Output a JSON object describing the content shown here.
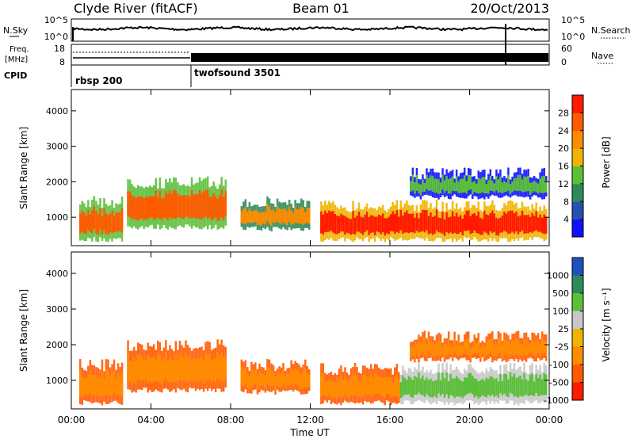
{
  "header": {
    "station": "Clyde River (fitACF)",
    "beam": "Beam 01",
    "date": "20/Oct/2013"
  },
  "top_panels": {
    "nsky_label": "N.Sky",
    "nsearch_label": "N.Search",
    "noise_left_ticks": [
      "10^5",
      "10^0"
    ],
    "noise_right_ticks": [
      "10^5",
      "10^0"
    ],
    "freq_label": "Freq.",
    "freq_unit": "[MHz]",
    "freq_ticks": [
      "18",
      "8"
    ],
    "nave_label": "Nave",
    "nave_ticks": [
      "60",
      "0"
    ],
    "cpid_label": "CPID",
    "cpid_segments": [
      {
        "name": "rbsp 200",
        "start_hour": 0
      },
      {
        "name": "twofsound 3501",
        "start_hour": 6
      }
    ]
  },
  "x_axis": {
    "label": "Time UT",
    "ticks": [
      "00:00",
      "04:00",
      "08:00",
      "12:00",
      "16:00",
      "20:00",
      "00:00"
    ],
    "range_hours": [
      0,
      24
    ]
  },
  "chart_data": [
    {
      "type": "heatmap",
      "quantity": "power",
      "ylabel": "Slant Range [km]",
      "y_ticks": [
        "1000",
        "2000",
        "3000",
        "4000"
      ],
      "ylim": [
        200,
        4600
      ],
      "colorbar": {
        "label": "Power [dB]",
        "ticks": [
          "4",
          "8",
          "12",
          "16",
          "20",
          "24",
          "28"
        ],
        "range": [
          0,
          32
        ],
        "colors": [
          "#1010ff",
          "#2850b0",
          "#2e8a5a",
          "#5cbf3a",
          "#f0b400",
          "#ff8c00",
          "#ff5a00",
          "#ff1a00"
        ]
      },
      "echo_regions": [
        {
          "t0": 0.4,
          "t1": 2.6,
          "r0": 300,
          "r1": 1600,
          "level": 24
        },
        {
          "t0": 2.8,
          "t1": 7.8,
          "r0": 650,
          "r1": 2150,
          "level": 26
        },
        {
          "t0": 8.5,
          "t1": 12.0,
          "r0": 600,
          "r1": 1600,
          "level": 20
        },
        {
          "t0": 12.5,
          "t1": 23.9,
          "r0": 300,
          "r1": 1500,
          "level": 28
        },
        {
          "t0": 17.0,
          "t1": 23.9,
          "r0": 1500,
          "r1": 2400,
          "level": 14
        }
      ]
    },
    {
      "type": "heatmap",
      "quantity": "velocity",
      "ylabel": "Slant Range [km]",
      "y_ticks": [
        "1000",
        "2000",
        "3000",
        "4000"
      ],
      "ylim": [
        200,
        4600
      ],
      "colorbar": {
        "label": "Velocity [m s⁻¹]",
        "ticks": [
          "1000",
          "500",
          "100",
          "25",
          "-25",
          "-100",
          "-500",
          "-1000"
        ],
        "colors": [
          "#2050c0",
          "#2e8a5a",
          "#5cbf3a",
          "#c8c8c8",
          "#f0b400",
          "#ff8c00",
          "#ff5a00",
          "#ff1a00"
        ]
      },
      "echo_regions": [
        {
          "t0": 0.4,
          "t1": 2.6,
          "r0": 300,
          "r1": 1600,
          "value": -100
        },
        {
          "t0": 2.8,
          "t1": 7.8,
          "r0": 650,
          "r1": 2150,
          "value": -150
        },
        {
          "t0": 8.5,
          "t1": 12.0,
          "r0": 600,
          "r1": 1600,
          "value": -100
        },
        {
          "t0": 12.5,
          "t1": 16.5,
          "r0": 300,
          "r1": 1500,
          "value": -80
        },
        {
          "t0": 16.5,
          "t1": 23.9,
          "r0": 300,
          "r1": 1500,
          "value": 150
        },
        {
          "t0": 17.0,
          "t1": 23.9,
          "r0": 1500,
          "r1": 2400,
          "value": -60
        }
      ]
    }
  ]
}
